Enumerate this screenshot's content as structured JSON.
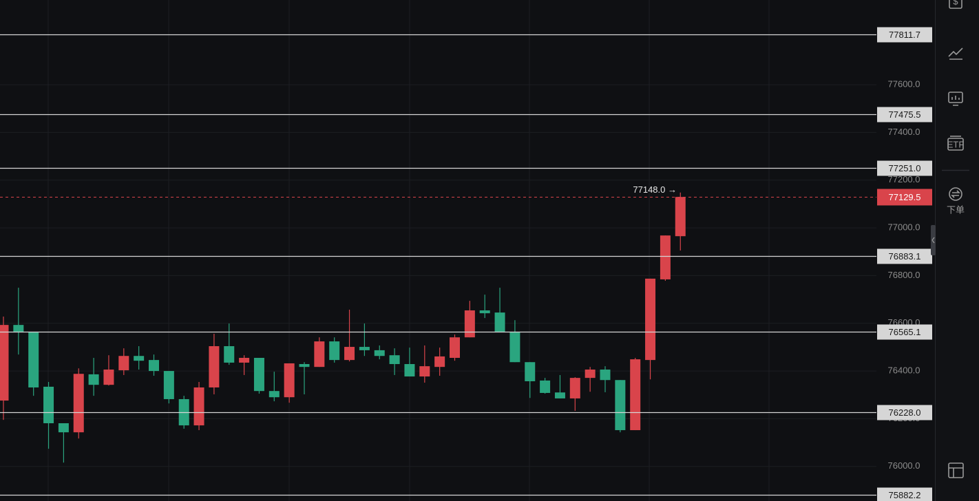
{
  "chart_data": {
    "type": "candlestick",
    "ylim": [
      75855,
      77955
    ],
    "yticks": [
      {
        "value": 76000,
        "label": "76000.0"
      },
      {
        "value": 76200,
        "label": "76200.0"
      },
      {
        "value": 76400,
        "label": "76400.0"
      },
      {
        "value": 76600,
        "label": "76600.0"
      },
      {
        "value": 76800,
        "label": "76800.0"
      },
      {
        "value": 77000,
        "label": "77000.0"
      },
      {
        "value": 77200,
        "label": "77200.0"
      },
      {
        "value": 77400,
        "label": "77400.0"
      },
      {
        "value": 77600,
        "label": "77600.0"
      }
    ],
    "grid": true,
    "up_color": "#d9444b",
    "down_color": "#2aa57f",
    "open": [
      76276,
      76593,
      76562,
      76334,
      76181,
      76143,
      76386,
      76342,
      76403,
      76463,
      76446,
      76400,
      76282,
      76172,
      76331,
      76504,
      76435,
      76455,
      76316,
      76290,
      76429,
      76417,
      76524,
      76446,
      76501,
      76487,
      76466,
      76429,
      76377,
      76417,
      76455,
      76541,
      76654,
      76645,
      76562,
      76437,
      76360,
      76310,
      76285,
      76371,
      76406,
      76362,
      76152,
      76446,
      76784,
      76965
    ],
    "high": [
      76628,
      76749,
      76562,
      76354,
      76181,
      76411,
      76455,
      76466,
      76495,
      76504,
      76469,
      76400,
      76296,
      76354,
      76556,
      76599,
      76466,
      76455,
      76397,
      76432,
      76437,
      76541,
      76541,
      76657,
      76599,
      76507,
      76495,
      76498,
      76507,
      76498,
      76553,
      76694,
      76720,
      76749,
      76613,
      76437,
      76371,
      76383,
      76374,
      76417,
      76420,
      76362,
      76455,
      76787,
      76968,
      77148.0
    ],
    "low": [
      76195,
      76469,
      76296,
      76074,
      76016,
      76117,
      76296,
      76339,
      76383,
      76406,
      76380,
      76264,
      76158,
      76152,
      76302,
      76426,
      76383,
      76305,
      76273,
      76267,
      76302,
      76417,
      76435,
      76440,
      76463,
      76449,
      76383,
      76377,
      76351,
      76380,
      76443,
      76541,
      76622,
      76564,
      76437,
      76287,
      76305,
      76285,
      76233,
      76313,
      76311,
      76143,
      76152,
      76365,
      76778,
      76905
    ],
    "close": [
      76593,
      76564,
      76331,
      76181,
      76143,
      76388,
      76342,
      76406,
      76463,
      76443,
      76400,
      76282,
      76172,
      76331,
      76504,
      76435,
      76455,
      76316,
      76290,
      76432,
      76417,
      76524,
      76446,
      76501,
      76487,
      76463,
      76429,
      76377,
      76420,
      76461,
      76541,
      76654,
      76642,
      76564,
      76437,
      76357,
      76308,
      76285,
      76371,
      76406,
      76362,
      76152,
      76449,
      76787,
      76968,
      77129.5
    ],
    "line_color": "#d6d6d6",
    "price_lines": [
      77811.7,
      77475.5,
      {
        "value": 77251.0,
        "label": "77251.0"
      },
      76883.1,
      76565.1,
      {
        "value": 76228.0,
        "label": "76228.0"
      },
      75882.2
    ],
    "last_price": 77129.5,
    "last_price_color": "#d9444b",
    "high_marker": {
      "value": 77148.0,
      "label": "77148.0 →"
    }
  },
  "sidebar": {
    "order_label": "下单"
  }
}
